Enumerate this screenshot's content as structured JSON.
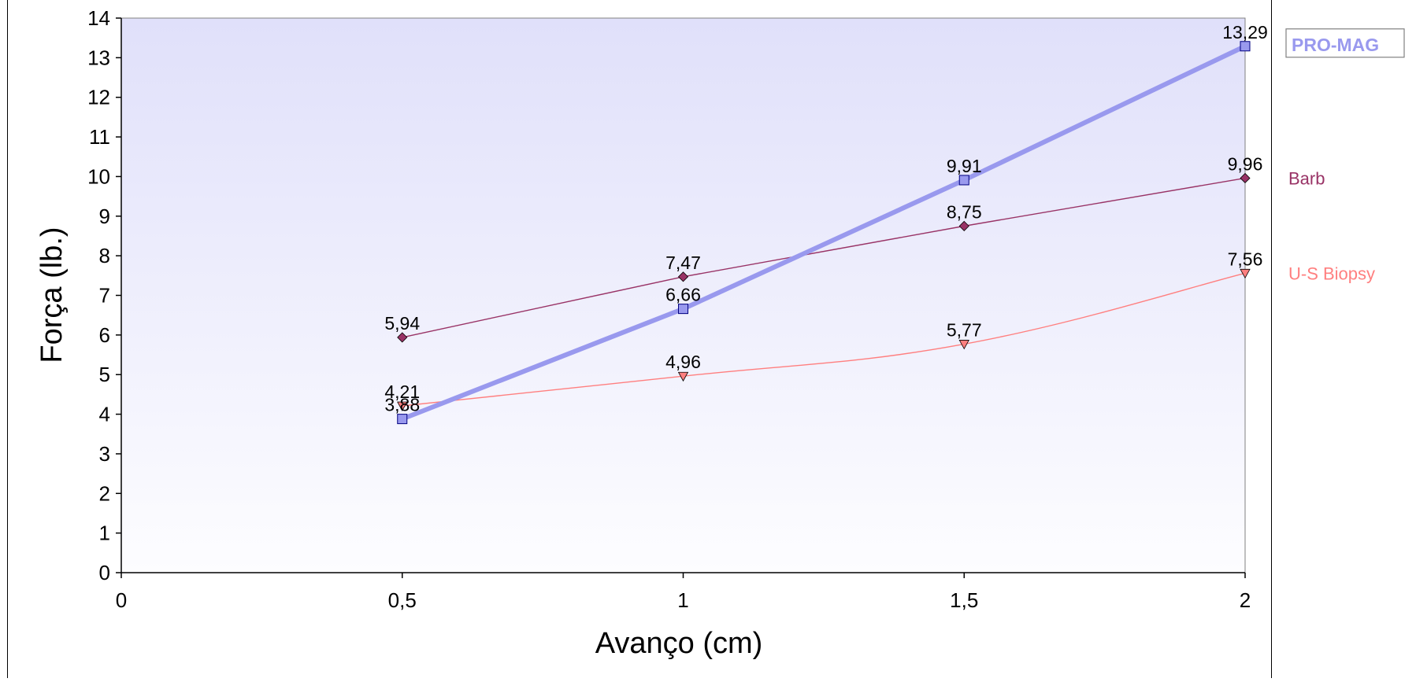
{
  "chart_data": {
    "type": "line",
    "title": "",
    "xlabel": "Avanço (cm)",
    "ylabel": "Força (lb.)",
    "xlim": [
      0,
      2
    ],
    "ylim": [
      0,
      14
    ],
    "x_ticks": [
      {
        "value": 0,
        "label": "0"
      },
      {
        "value": 0.5,
        "label": "0,5"
      },
      {
        "value": 1,
        "label": "1"
      },
      {
        "value": 1.5,
        "label": "1,5"
      },
      {
        "value": 2,
        "label": "2"
      }
    ],
    "y_ticks": [
      {
        "value": 0,
        "label": "0"
      },
      {
        "value": 1,
        "label": "1"
      },
      {
        "value": 2,
        "label": "2"
      },
      {
        "value": 3,
        "label": "3"
      },
      {
        "value": 4,
        "label": "4"
      },
      {
        "value": 5,
        "label": "5"
      },
      {
        "value": 6,
        "label": "6"
      },
      {
        "value": 7,
        "label": "7"
      },
      {
        "value": 8,
        "label": "8"
      },
      {
        "value": 9,
        "label": "9"
      },
      {
        "value": 10,
        "label": "10"
      },
      {
        "value": 11,
        "label": "11"
      },
      {
        "value": 12,
        "label": "12"
      },
      {
        "value": 13,
        "label": "13"
      },
      {
        "value": 14,
        "label": "14"
      }
    ],
    "x": [
      0.5,
      1,
      1.5,
      2
    ],
    "grid": false,
    "legend": "right",
    "plot_background": "gradient lavender (top) to white (bottom)",
    "series": [
      {
        "name": "PRO-MAG",
        "values": [
          3.88,
          6.66,
          9.91,
          13.29
        ],
        "labels": [
          "3,88",
          "6,66",
          "9,91",
          "13,29"
        ],
        "color": "#9999ee",
        "marker": "square",
        "line": "thick straight",
        "legend_boxed": true
      },
      {
        "name": "Barb",
        "values": [
          5.94,
          7.47,
          8.75,
          9.96
        ],
        "labels": [
          "5,94",
          "7,47",
          "8,75",
          "9,96"
        ],
        "color": "#993366",
        "marker": "diamond",
        "line": "thin straight",
        "legend_boxed": false
      },
      {
        "name": "U-S Biopsy",
        "values": [
          4.21,
          4.96,
          5.77,
          7.56
        ],
        "labels": [
          "4,21",
          "4,96",
          "5,77",
          "7,56"
        ],
        "color": "#ff7f7f",
        "marker": "triangle-down",
        "line": "thin smooth",
        "legend_boxed": false
      }
    ]
  }
}
